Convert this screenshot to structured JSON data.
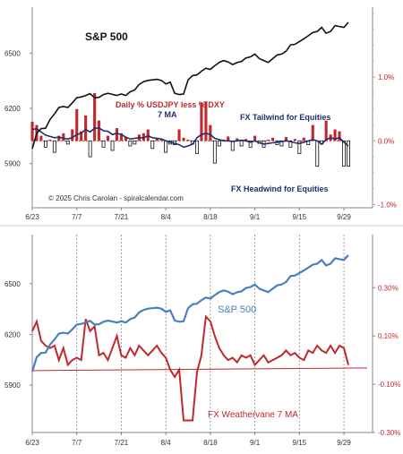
{
  "colors": {
    "sp_black": "#111111",
    "sp_blue": "#4a7fc0",
    "bar_red": "#c0282c",
    "ma_navy": "#1f2f6e",
    "weathervane_red": "#c0282c",
    "ann_navy": "#1f2f6e"
  },
  "chart_data": [
    {
      "type": "line",
      "title": "",
      "annotations": {
        "sp_label": "S&P 500",
        "indicator_line1": "Daily % USDJPY less % DXY",
        "indicator_line2": "7 MA",
        "tailwind": "FX Tailwind for Equities",
        "headwind": "FX Headwind for Equities",
        "copyright": "© 2025 Chris Carolan - spiralcalendar.com"
      },
      "x_tick_labels": [
        "6/23",
        "7/7",
        "7/21",
        "8/4",
        "8/18",
        "9/1",
        "9/15",
        "9/29"
      ],
      "y_left_ticks": [
        5900,
        6200,
        6500
      ],
      "y_left_range": [
        5660,
        6750
      ],
      "y_right_ticks": [
        "1.0%",
        "0.0%",
        "-1.0%"
      ],
      "y_right_values": [
        1.0,
        0.0,
        -1.0
      ],
      "y_right_range": [
        -1.05,
        2.1
      ],
      "x_count": 72,
      "sp500": [
        5980,
        6065,
        6090,
        6092,
        6140,
        6170,
        6205,
        6210,
        6205,
        6230,
        6258,
        6262,
        6270,
        6280,
        6258,
        6260,
        6275,
        6282,
        6276,
        6270,
        6278,
        6270,
        6290,
        6300,
        6330,
        6345,
        6352,
        6355,
        6358,
        6352,
        6333,
        6342,
        6282,
        6275,
        6278,
        6355,
        6378,
        6382,
        6402,
        6418,
        6412,
        6432,
        6450,
        6460,
        6452,
        6438,
        6449,
        6455,
        6474,
        6480,
        6495,
        6470,
        6460,
        6450,
        6470,
        6490,
        6495,
        6510,
        6545,
        6548,
        6563,
        6578,
        6595,
        6612,
        6618,
        6640,
        6608,
        6618,
        6650,
        6645,
        6640,
        6668
      ],
      "daily_diff": [
        0.3,
        0.25,
        0.08,
        -0.1,
        0.02,
        -0.18,
        0.08,
        0.12,
        -0.05,
        0.18,
        0.5,
        0.15,
        0.4,
        -0.25,
        0.75,
        0.32,
        -0.1,
        0.08,
        -0.15,
        0.2,
        0.12,
        0.06,
        -0.08,
        -0.05,
        0.1,
        0.12,
        0.18,
        -0.12,
        0.05,
        0.02,
        -0.18,
        -0.05,
        -0.06,
        0.18,
        0.05,
        0.02,
        -0.05,
        -0.2,
        0.6,
        0.62,
        0.25,
        -0.35,
        -0.08,
        0.02,
        0.07,
        -0.15,
        0.04,
        -0.08,
        0.03,
        -0.1,
        0.08,
        -0.04,
        -0.1,
        0.02,
        0.05,
        -0.06,
        -0.08,
        0.06,
        -0.1,
        0.03,
        -0.2,
        0.05,
        -0.06,
        0.25,
        -0.4,
        -0.05,
        0.32,
        0.1,
        0.18,
        0.15,
        -0.4,
        -0.4
      ],
      "ma7": [
        0.18,
        0.19,
        0.14,
        0.09,
        0.07,
        0.05,
        0.06,
        0.04,
        0.03,
        0.05,
        0.1,
        0.12,
        0.18,
        0.14,
        0.2,
        0.2,
        0.16,
        0.15,
        0.1,
        0.12,
        0.1,
        0.06,
        0.03,
        0.04,
        0.05,
        0.05,
        0.08,
        0.05,
        0.04,
        0.03,
        0.0,
        -0.02,
        -0.04,
        -0.06,
        -0.1,
        -0.08,
        -0.05,
        0.05,
        0.1,
        0.12,
        0.1,
        0.04,
        0.02,
        0.0,
        0.0,
        -0.01,
        0.0,
        0.01,
        0.0,
        -0.02,
        0.0,
        -0.03,
        -0.05,
        -0.04,
        -0.03,
        -0.02,
        -0.01,
        0.0,
        -0.01,
        -0.03,
        -0.04,
        -0.02,
        0.0,
        0.02,
        0.0,
        -0.05,
        0.02,
        0.05,
        0.03,
        0.05,
        -0.02,
        -0.08
      ]
    },
    {
      "type": "line",
      "title": "",
      "annotations": {
        "sp_label": "S&P 500",
        "weathervane_label": "FX Weathervane 7 MA"
      },
      "x_tick_labels": [
        "6/23",
        "7/7",
        "7/21",
        "8/4",
        "8/18",
        "9/1",
        "9/15",
        "9/29"
      ],
      "y_left_ticks": [
        5900,
        6200,
        6500
      ],
      "y_left_range": [
        5620,
        6790
      ],
      "y_right_ticks": [
        "0.30%",
        "0.10%",
        "-0.10%",
        "-0.30%"
      ],
      "y_right_values": [
        0.3,
        0.1,
        -0.1,
        -0.3
      ],
      "y_right_range": [
        -0.3,
        0.52
      ],
      "x_count": 72,
      "sp500": [
        5980,
        6065,
        6090,
        6092,
        6140,
        6170,
        6205,
        6210,
        6205,
        6230,
        6258,
        6262,
        6270,
        6280,
        6258,
        6260,
        6275,
        6282,
        6276,
        6270,
        6278,
        6270,
        6290,
        6300,
        6330,
        6345,
        6352,
        6355,
        6358,
        6352,
        6333,
        6342,
        6282,
        6275,
        6278,
        6355,
        6378,
        6382,
        6402,
        6418,
        6412,
        6432,
        6450,
        6460,
        6452,
        6438,
        6449,
        6455,
        6474,
        6480,
        6495,
        6470,
        6460,
        6450,
        6470,
        6490,
        6495,
        6510,
        6545,
        6548,
        6563,
        6578,
        6595,
        6612,
        6618,
        6640,
        6608,
        6618,
        6650,
        6645,
        6640,
        6668
      ],
      "weathervane": [
        0.12,
        0.16,
        0.08,
        0.06,
        0.05,
        0.06,
        0.0,
        0.05,
        -0.02,
        0.0,
        0.01,
        0.0,
        0.17,
        0.12,
        0.14,
        0.02,
        0.03,
        0.0,
        0.05,
        0.1,
        0.02,
        0.01,
        0.05,
        0.02,
        0.06,
        0.04,
        0.02,
        0.04,
        0.06,
        0.03,
        0.01,
        -0.04,
        -0.07,
        -0.04,
        -0.25,
        -0.25,
        -0.25,
        -0.05,
        0.02,
        0.18,
        0.16,
        0.1,
        0.05,
        0.02,
        0.0,
        0.01,
        -0.01,
        0.02,
        0.01,
        0.02,
        -0.02,
        0.0,
        0.02,
        -0.01,
        0.0,
        0.01,
        0.02,
        0.04,
        0.02,
        0.03,
        0.01,
        0.0,
        0.04,
        0.03,
        0.06,
        0.04,
        0.03,
        0.06,
        0.03,
        0.06,
        0.05,
        -0.02
      ],
      "zero_baseline": -0.04
    }
  ]
}
